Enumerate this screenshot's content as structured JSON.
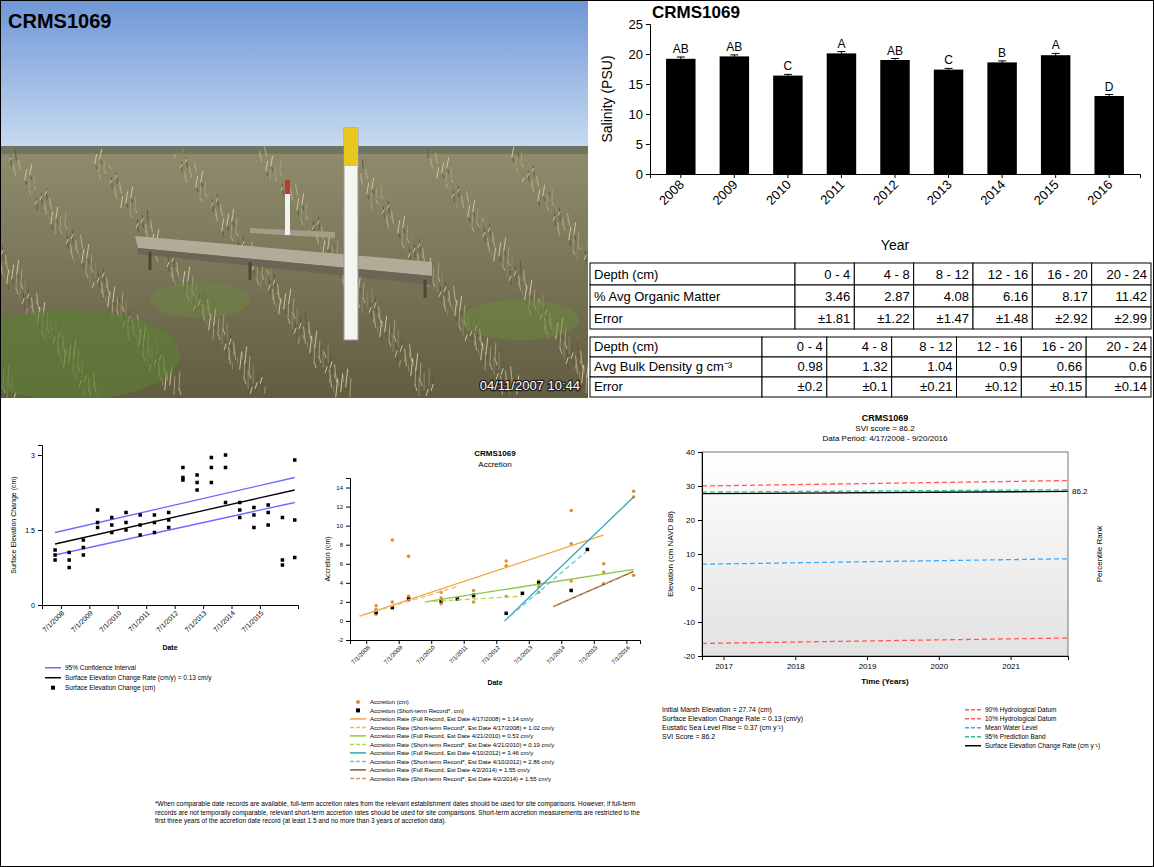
{
  "title": "CRMS1069",
  "photo": {
    "timestamp": "04/11/2007 10:44"
  },
  "chart_data": [
    {
      "type": "bar",
      "title": "CRMS1069",
      "x_label": "Year",
      "y_label": "Salinity (PSU)",
      "categories": [
        "2008",
        "2009",
        "2010",
        "2011",
        "2012",
        "2013",
        "2014",
        "2015",
        "2016"
      ],
      "values": [
        19.2,
        19.6,
        16.4,
        20.1,
        19.0,
        17.4,
        18.6,
        19.8,
        13.0
      ],
      "errors": [
        0.3,
        0.25,
        0.2,
        0.3,
        0.25,
        0.2,
        0.25,
        0.3,
        0.25
      ],
      "letters": [
        "AB",
        "AB",
        "C",
        "A",
        "AB",
        "C",
        "B",
        "A",
        "D"
      ],
      "color": "#000000",
      "ylim": [
        0,
        25
      ],
      "yticks": [
        0,
        5,
        10,
        15,
        20,
        25
      ],
      "grid": false
    },
    {
      "type": "scatter",
      "x_label": "Date",
      "y_label": "Surface Elevation Change (cm)",
      "xlim": [
        "2007-11-01",
        "2016-11-01"
      ],
      "xticks": [
        {
          "value": "2008-07-01",
          "label": "7/1/2008"
        },
        {
          "value": "2009-07-01",
          "label": "7/1/2009"
        },
        {
          "value": "2010-07-01",
          "label": "7/1/2010"
        },
        {
          "value": "2011-07-01",
          "label": "7/1/2011"
        },
        {
          "value": "2012-07-01",
          "label": "7/1/2012"
        },
        {
          "value": "2013-07-01",
          "label": "7/1/2013"
        },
        {
          "value": "2014-07-01",
          "label": "7/1/2014"
        },
        {
          "value": "2015-07-01",
          "label": "7/1/2015"
        }
      ],
      "ylim": [
        0,
        3.2
      ],
      "yticks": [
        0,
        1.5,
        3
      ],
      "grid": false,
      "legend": "bottom",
      "series": [
        {
          "name": "95% Confidence Interval",
          "type": "band",
          "color": "#6b6bff",
          "line_style": "solid",
          "x": [
            "2008-04-17",
            "2016-09-20"
          ],
          "upper": [
            1.45,
            2.55
          ],
          "lower": [
            1.0,
            2.05
          ]
        },
        {
          "name": "Surface Elevation Change Rate (cm/y) = 0.13 cm/y",
          "type": "line",
          "color": "#000000",
          "line_style": "solid",
          "x": [
            "2008-04-17",
            "2016-09-20"
          ],
          "values": [
            1.22,
            2.3
          ]
        },
        {
          "name": "Surface Elevation Change (cm)",
          "type": "scatter",
          "marker": "square",
          "color": "#000000",
          "x": [
            "2008-04-17",
            "2008-04-17",
            "2008-04-17",
            "2008-10-15",
            "2008-10-15",
            "2008-10-15",
            "2009-04-15",
            "2009-04-15",
            "2009-04-15",
            "2009-10-15",
            "2009-10-15",
            "2009-10-15",
            "2010-04-15",
            "2010-04-15",
            "2010-04-15",
            "2010-10-15",
            "2010-10-15",
            "2010-10-15",
            "2011-04-15",
            "2011-04-15",
            "2011-04-15",
            "2011-10-15",
            "2011-10-15",
            "2011-10-15",
            "2012-04-15",
            "2012-04-15",
            "2012-04-15",
            "2012-10-15",
            "2012-10-15",
            "2012-10-15",
            "2013-04-15",
            "2013-04-15",
            "2013-04-15",
            "2013-10-15",
            "2013-10-15",
            "2013-10-15",
            "2014-04-15",
            "2014-04-15",
            "2014-04-15",
            "2014-10-15",
            "2014-10-15",
            "2014-10-15",
            "2015-04-15",
            "2015-04-15",
            "2015-04-15",
            "2015-10-15",
            "2015-10-15",
            "2015-10-15",
            "2016-04-15",
            "2016-04-15",
            "2016-04-15",
            "2016-09-20",
            "2016-09-20",
            "2016-09-20"
          ],
          "values": [
            0.9,
            1.0,
            1.1,
            0.75,
            0.9,
            1.05,
            1.0,
            1.15,
            1.3,
            1.55,
            1.65,
            1.9,
            1.45,
            1.6,
            1.75,
            1.5,
            1.65,
            1.85,
            1.4,
            1.6,
            1.8,
            1.45,
            1.65,
            1.8,
            1.55,
            1.7,
            1.85,
            2.5,
            2.55,
            2.75,
            2.3,
            2.45,
            2.6,
            2.45,
            2.75,
            2.95,
            2.05,
            2.75,
            3.0,
            1.75,
            1.9,
            2.05,
            1.55,
            1.8,
            1.95,
            1.6,
            1.85,
            2.0,
            0.8,
            0.9,
            1.75,
            0.95,
            1.7,
            2.9
          ]
        }
      ]
    },
    {
      "type": "scatter",
      "title": "CRMS1069",
      "subtitle": "Accretion",
      "x_label": "Date",
      "y_label": "Accretion (cm)",
      "xlim": [
        "2008-01-01",
        "2016-12-01"
      ],
      "xticks": [
        {
          "value": "2008-07-01",
          "label": "7/1/2008"
        },
        {
          "value": "2009-07-01",
          "label": "7/1/2009"
        },
        {
          "value": "2010-07-01",
          "label": "7/1/2010"
        },
        {
          "value": "2011-07-01",
          "label": "7/1/2011"
        },
        {
          "value": "2012-07-01",
          "label": "7/1/2012"
        },
        {
          "value": "2013-07-01",
          "label": "7/1/2013"
        },
        {
          "value": "2014-07-01",
          "label": "7/1/2014"
        },
        {
          "value": "2015-07-01",
          "label": "7/1/2015"
        },
        {
          "value": "2016-07-01",
          "label": "7/1/2016"
        }
      ],
      "ylim": [
        -2,
        15
      ],
      "yticks": [
        -2,
        0,
        2,
        4,
        6,
        8,
        10,
        12,
        14
      ],
      "grid": false,
      "legend": "bottom",
      "note": "*When comparable date records are available, full-term accretion rates from the relevant establishment dates should be used for site comparisons. However, if full-term records are not temporally comparable, relevant short-term accretion rates should be used for site comparisons. Short-term accretion measurements are restricted to the first three years of the accretion date record (at least 1.5 and no more than 3 years of accretion data).",
      "series": [
        {
          "name": "Accretion (cm)",
          "type": "scatter",
          "marker": "circle",
          "color": "#d98c3a",
          "x": [
            "2008-10-20",
            "2008-10-20",
            "2008-10-20",
            "2009-04-20",
            "2009-04-20",
            "2009-04-20",
            "2009-10-20",
            "2009-10-20",
            "2009-10-20",
            "2010-10-20",
            "2010-10-20",
            "2010-10-20",
            "2011-10-20",
            "2011-10-20",
            "2011-10-20",
            "2012-10-20",
            "2012-10-20",
            "2012-10-20",
            "2013-10-20",
            "2013-10-20",
            "2013-10-20",
            "2014-10-20",
            "2014-10-20",
            "2014-10-20",
            "2015-10-20",
            "2015-10-20",
            "2015-10-20",
            "2016-09-20",
            "2016-09-20",
            "2016-09-20"
          ],
          "values": [
            0.7,
            1.2,
            1.6,
            1.5,
            2.0,
            8.5,
            2.2,
            2.6,
            6.8,
            1.8,
            2.4,
            3.0,
            2.0,
            2.5,
            3.2,
            2.6,
            5.8,
            6.3,
            3.0,
            3.6,
            4.2,
            4.2,
            8.1,
            11.6,
            3.9,
            5.1,
            6.0,
            4.8,
            13.0,
            13.6
          ]
        },
        {
          "name": "Accretion (Short-term Record*, cm)",
          "type": "scatter",
          "marker": "square",
          "color": "#000000",
          "x": [
            "2008-10-20",
            "2009-04-20",
            "2009-10-20",
            "2010-10-20",
            "2011-04-20",
            "2011-10-20",
            "2012-10-20",
            "2013-04-20",
            "2013-10-20",
            "2014-10-20",
            "2015-04-20"
          ],
          "values": [
            0.9,
            1.4,
            2.3,
            2.1,
            2.3,
            2.7,
            0.8,
            2.9,
            4.0,
            3.2,
            7.5
          ]
        },
        {
          "name": "Accretion Rate (Full Record, Est Date 4/17/2008) = 1.14 cm/y",
          "type": "line",
          "color": "#f4a340",
          "line_style": "solid",
          "x": [
            "2008-04-17",
            "2015-10-15"
          ],
          "values": [
            0.5,
            9.0
          ]
        },
        {
          "name": "Accretion Rate (Short-term Record*, Est Date 4/17/2008) = 1.02 cm/y",
          "type": "line",
          "color": "#f0b870",
          "line_style": "dashed",
          "x": [
            "2008-04-17",
            "2011-04-17"
          ],
          "values": [
            0.5,
            3.6
          ]
        },
        {
          "name": "Accretion Rate (Full Record, Est Date 4/21/2010) = 0.53 cm/y",
          "type": "line",
          "color": "#8cc63f",
          "line_style": "solid",
          "x": [
            "2010-04-21",
            "2016-09-20"
          ],
          "values": [
            2.0,
            5.4
          ]
        },
        {
          "name": "Accretion Rate (Short-term Record*, Est Date 4/21/2010) = 0.19 cm/y",
          "type": "line",
          "color": "#b5d84f",
          "line_style": "dashed",
          "x": [
            "2010-04-21",
            "2013-04-21"
          ],
          "values": [
            2.0,
            2.6
          ]
        },
        {
          "name": "Accretion Rate (Full Record, Est Date 4/10/2012) = 3.46 cm/y",
          "type": "line",
          "color": "#2aa7b9",
          "line_style": "solid",
          "x": [
            "2012-10-01",
            "2016-09-20"
          ],
          "values": [
            0.0,
            13.0
          ]
        },
        {
          "name": "Accretion Rate (Short-term Record*, Est Date 4/10/2012) = 2.86 cm/y",
          "type": "line",
          "color": "#6cc6d4",
          "line_style": "dashed",
          "x": [
            "2012-10-01",
            "2015-04-10"
          ],
          "values": [
            0.0,
            7.3
          ]
        },
        {
          "name": "Accretion Rate (Full Record, Est Date 4/2/2014) = 1.55 cm/y",
          "type": "line",
          "color": "#8b5a2b",
          "line_style": "solid",
          "x": [
            "2014-04-02",
            "2016-09-20"
          ],
          "values": [
            1.5,
            5.2
          ]
        },
        {
          "name": "Accretion Rate (Short-term Record*, Est Date 4/2/2014) = 1.55 cm/y",
          "type": "line",
          "color": "#c49a6c",
          "line_style": "dashed",
          "x": [
            "2014-04-02",
            "2016-09-20"
          ],
          "values": [
            1.5,
            5.2
          ]
        }
      ]
    },
    {
      "type": "line",
      "title": "CRMS1069",
      "subtitle": [
        "SVI score = 86.2",
        "Data Period: 4/17/2008 - 9/20/2016"
      ],
      "x_label": "Time (Years)",
      "y_label": "Elevation (cm NAVD 88)",
      "y2_label": "Percentile Rank",
      "annotation": "86.2",
      "notes": [
        "Initial Marsh Elevation = 27.74 (cm)",
        "Surface Elevation Change Rate = 0.13 (cm/y)",
        "Eustatic Sea Level Rise = 0.37 (cm y⁻¹)",
        "SVI Score = 86.2"
      ],
      "xlim": [
        2016.7,
        2021.8
      ],
      "xticks": [
        2017,
        2018,
        2019,
        2020,
        2021
      ],
      "ylim": [
        -20,
        40
      ],
      "yticks": [
        -20,
        -10,
        0,
        10,
        20,
        30,
        40
      ],
      "grid": false,
      "legend": "bottom",
      "series": [
        {
          "name": "90% Hydrological Datum",
          "type": "line",
          "color": "#ff5a5a",
          "line_style": "dashed",
          "x": [
            2016.7,
            2021.8
          ],
          "values": [
            30.0,
            31.6
          ]
        },
        {
          "name": "10% Hydrological Datum",
          "type": "line",
          "color": "#ff5a5a",
          "line_style": "dashed",
          "x": [
            2016.7,
            2021.8
          ],
          "values": [
            -16.3,
            -14.7
          ]
        },
        {
          "name": "Mean Water Level",
          "type": "line",
          "color": "#3fa9f5",
          "line_style": "dashed",
          "x": [
            2016.7,
            2021.8
          ],
          "values": [
            7.0,
            8.6
          ]
        },
        {
          "name": "95% Prediction Band",
          "type": "line",
          "color": "#2fbf8f",
          "line_style": "dashed",
          "x": [
            2016.7,
            2021.8
          ],
          "values": [
            28.2,
            28.9
          ]
        },
        {
          "name": "Surface Elevation Change Rate (cm y⁻¹)",
          "type": "line",
          "color": "#000000",
          "line_style": "solid",
          "x": [
            2016.7,
            2021.8
          ],
          "values": [
            27.74,
            28.4
          ]
        }
      ]
    }
  ],
  "tables": [
    {
      "columns": [
        "Depth (cm)",
        "0 - 4",
        "4 - 8",
        "8 - 12",
        "12 - 16",
        "16 - 20",
        "20 - 24"
      ],
      "rows": [
        [
          "% Avg Organic Matter",
          3.46,
          2.87,
          4.08,
          6.16,
          8.17,
          11.42
        ],
        [
          "Error",
          "±1.81",
          "±1.22",
          "±1.47",
          "±1.48",
          "±2.92",
          "±2.99"
        ]
      ]
    },
    {
      "columns": [
        "Depth (cm)",
        "0 - 4",
        "4 - 8",
        "8 - 12",
        "12 - 16",
        "16 - 20",
        "20 - 24"
      ],
      "rows": [
        [
          "Avg Bulk Density g cm⁻³",
          0.98,
          1.32,
          1.04,
          0.9,
          0.66,
          0.6
        ],
        [
          "Error",
          "±0.2",
          "±0.1",
          "±0.21",
          "±0.12",
          "±0.15",
          "±0.14"
        ]
      ]
    }
  ]
}
